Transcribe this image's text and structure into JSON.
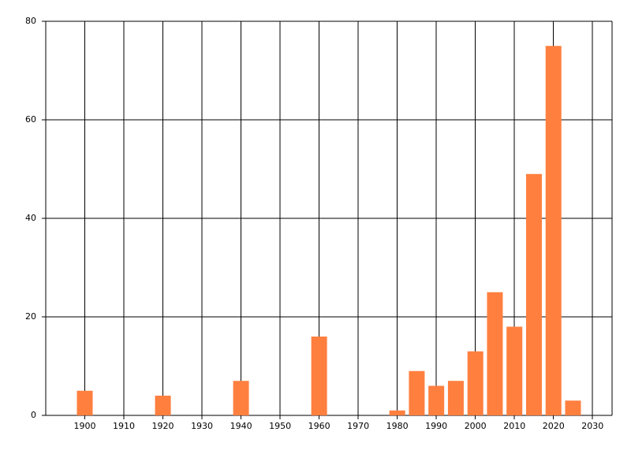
{
  "chart_data": {
    "type": "bar",
    "x": [
      1900,
      1920,
      1940,
      1960,
      1980,
      1985,
      1990,
      1995,
      2000,
      2005,
      2010,
      2015,
      2020,
      2025
    ],
    "values": [
      5,
      4,
      7,
      16,
      1,
      9,
      6,
      7,
      13,
      25,
      18,
      49,
      75,
      3
    ],
    "color": "#ff7f3f",
    "xlim": [
      1890,
      2035
    ],
    "xticks": [
      1900,
      1910,
      1920,
      1930,
      1940,
      1950,
      1960,
      1970,
      1980,
      1990,
      2000,
      2010,
      2020,
      2030
    ],
    "ylim": [
      0,
      80
    ],
    "yticks": [
      0,
      20,
      40,
      60,
      80
    ],
    "grid": true
  }
}
